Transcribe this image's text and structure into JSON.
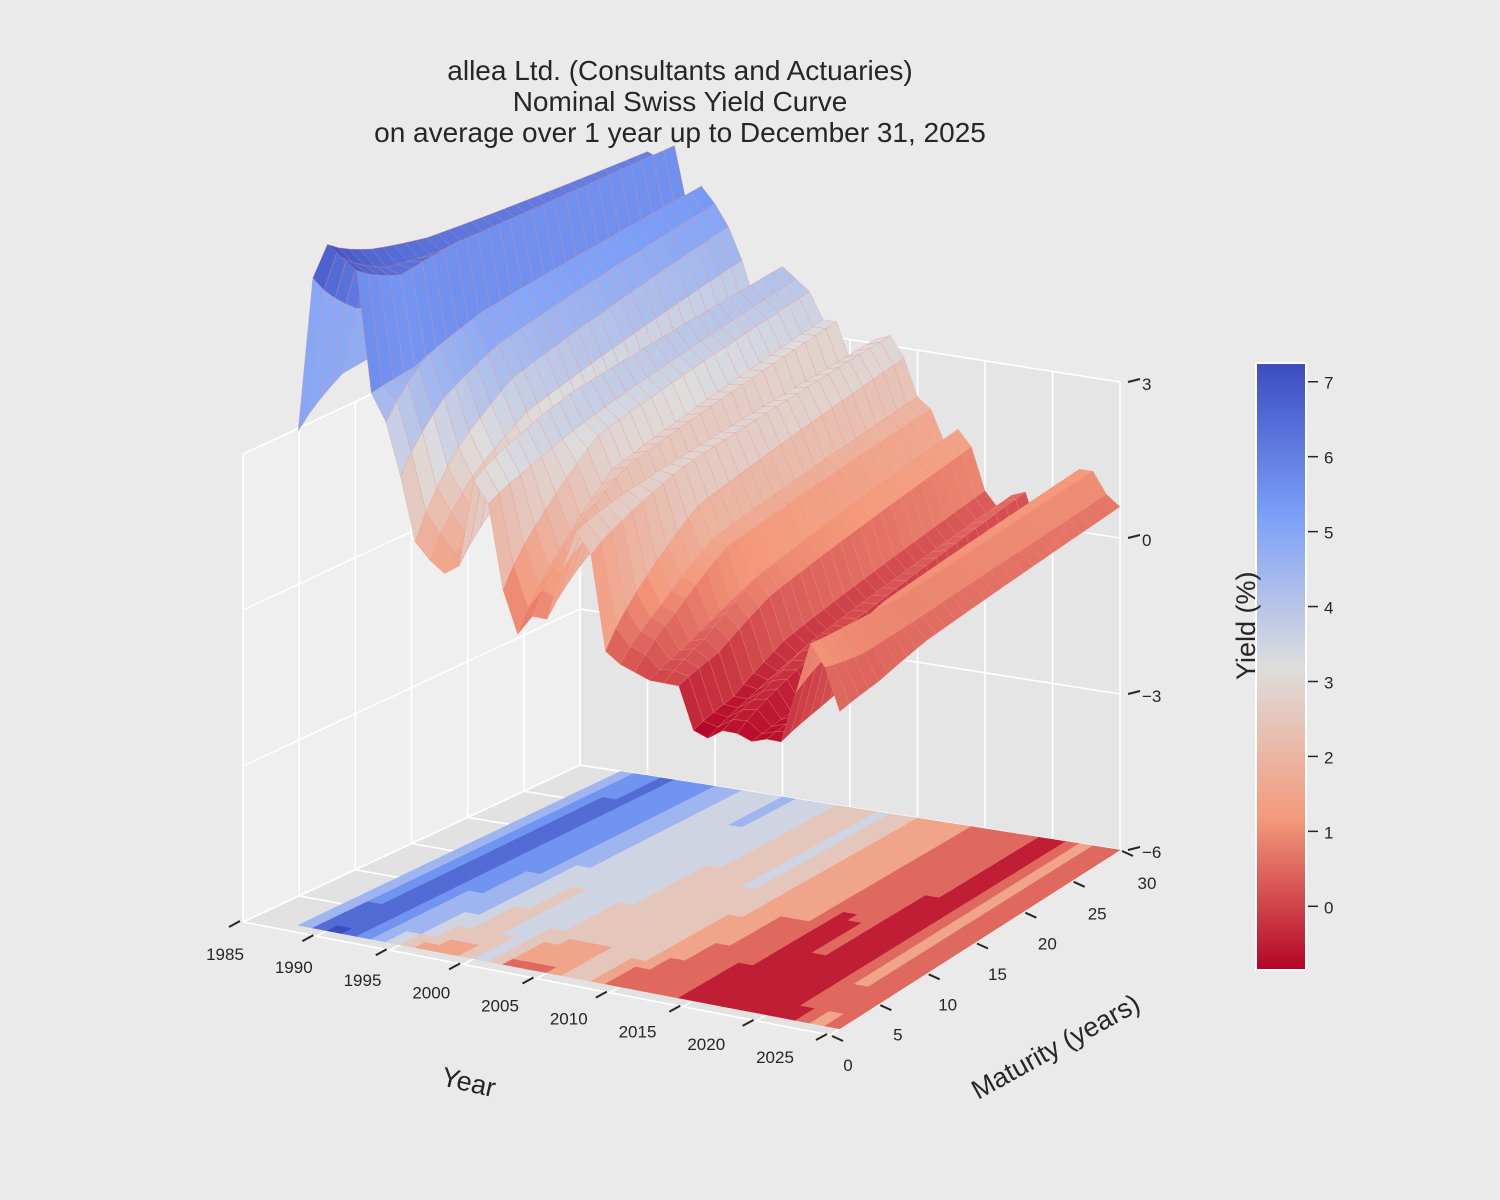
{
  "title": {
    "line1": "allea Ltd. (Consultants and Actuaries)",
    "line2": "Nominal Swiss Yield Curve",
    "line3": "on average over 1 year up to December 31, 2025"
  },
  "chart_data": {
    "type": "surface",
    "xlabel": "Year",
    "ylabel": "Maturity (years)",
    "zlabel": "",
    "colorbar_label": "Yield (%)",
    "colormap": "coolwarm_r",
    "color_low": "#b40426",
    "color_mid": "#dddddd",
    "color_high": "#3b4cc0",
    "xlim": [
      1985,
      2025
    ],
    "ylim": [
      0,
      30
    ],
    "zlim": [
      -6,
      3
    ],
    "colorbar_range": [
      -0.85,
      7.25
    ],
    "x_ticks": [
      "1985",
      "1990",
      "1995",
      "2000",
      "2005",
      "2010",
      "2015",
      "2020",
      "2025"
    ],
    "y_ticks": [
      "0",
      "5",
      "10",
      "15",
      "20",
      "25",
      "30"
    ],
    "z_ticks": [
      "3",
      "0",
      "−3",
      "−6"
    ],
    "colorbar_ticks": [
      "7",
      "6",
      "5",
      "4",
      "3",
      "2",
      "1",
      "0"
    ],
    "contour_offset": -6,
    "maturities": [
      1,
      5,
      10,
      30
    ],
    "years": [
      1988,
      1989,
      1990,
      1991,
      1992,
      1993,
      1994,
      1995,
      1996,
      1997,
      1998,
      1999,
      2000,
      2001,
      2002,
      2003,
      2004,
      2005,
      2006,
      2007,
      2008,
      2009,
      2010,
      2011,
      2012,
      2013,
      2014,
      2015,
      2016,
      2017,
      2018,
      2019,
      2020,
      2021,
      2022,
      2023,
      2024,
      2025
    ],
    "yields": [
      [
        3.5,
        4.2,
        4.3,
        4.5
      ],
      [
        6.5,
        5.5,
        5.2,
        5.0
      ],
      [
        7.2,
        6.7,
        6.4,
        6.0
      ],
      [
        7.0,
        6.4,
        6.2,
        5.9
      ],
      [
        6.8,
        6.3,
        6.4,
        6.2
      ],
      [
        4.5,
        4.6,
        4.8,
        5.0
      ],
      [
        4.0,
        4.9,
        5.2,
        5.5
      ],
      [
        3.0,
        4.1,
        4.6,
        5.2
      ],
      [
        1.8,
        3.2,
        4.0,
        4.8
      ],
      [
        1.5,
        2.7,
        3.4,
        4.2
      ],
      [
        1.3,
        2.2,
        2.8,
        3.4
      ],
      [
        1.5,
        2.4,
        3.0,
        3.6
      ],
      [
        3.2,
        3.6,
        3.9,
        4.2
      ],
      [
        2.8,
        3.1,
        3.4,
        4.0
      ],
      [
        1.2,
        2.3,
        3.2,
        3.8
      ],
      [
        0.4,
        1.6,
        2.6,
        3.3
      ],
      [
        0.8,
        2.0,
        2.7,
        3.3
      ],
      [
        0.8,
        1.6,
        2.1,
        2.6
      ],
      [
        1.8,
        2.3,
        2.5,
        2.8
      ],
      [
        2.6,
        2.8,
        2.9,
        3.1
      ],
      [
        2.2,
        2.6,
        2.9,
        3.2
      ],
      [
        0.4,
        1.4,
        2.2,
        2.8
      ],
      [
        0.2,
        0.9,
        1.6,
        2.1
      ],
      [
        0.1,
        0.8,
        1.5,
        1.9
      ],
      [
        0.0,
        0.3,
        0.7,
        1.3
      ],
      [
        0.0,
        0.4,
        1.0,
        1.6
      ],
      [
        0.0,
        0.2,
        0.7,
        1.3
      ],
      [
        -0.8,
        -0.6,
        -0.1,
        0.5
      ],
      [
        -0.9,
        -0.6,
        -0.3,
        0.2
      ],
      [
        -0.7,
        -0.4,
        0.0,
        0.5
      ],
      [
        -0.7,
        -0.3,
        0.0,
        0.6
      ],
      [
        -0.8,
        -0.7,
        -0.5,
        -0.2
      ],
      [
        -0.7,
        -0.6,
        -0.5,
        -0.2
      ],
      [
        -0.7,
        -0.5,
        -0.3,
        0.1
      ],
      [
        0.3,
        0.7,
        1.0,
        1.2
      ],
      [
        1.3,
        1.2,
        1.1,
        1.2
      ],
      [
        0.9,
        0.7,
        0.7,
        0.8
      ],
      [
        0.1,
        0.2,
        0.4,
        0.6
      ]
    ]
  }
}
